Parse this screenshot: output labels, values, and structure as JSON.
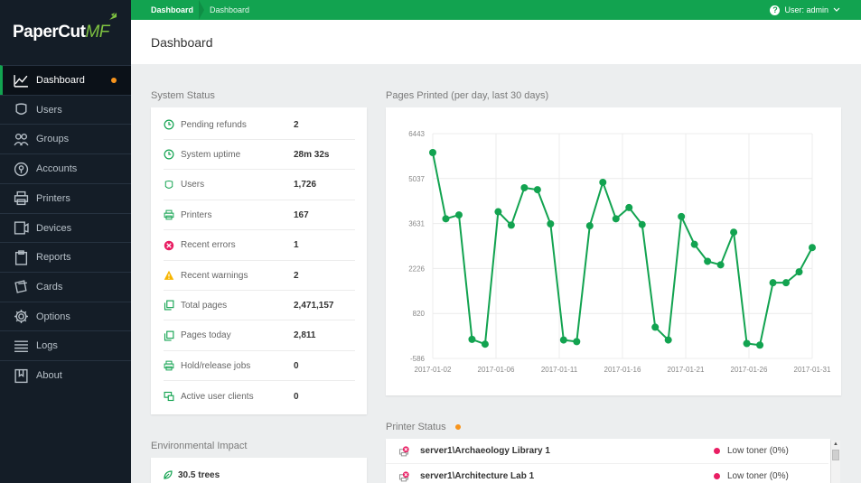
{
  "app": {
    "logo_main": "PaperCut",
    "logo_suffix": "MF"
  },
  "breadcrumb": [
    "Dashboard",
    "Dashboard"
  ],
  "user_menu": "User: admin",
  "page_title": "Dashboard",
  "sidebar": {
    "items": [
      {
        "label": "Dashboard",
        "icon": "chart-line-icon",
        "active": true
      },
      {
        "label": "Users",
        "icon": "user-icon"
      },
      {
        "label": "Groups",
        "icon": "groups-icon"
      },
      {
        "label": "Accounts",
        "icon": "accounts-icon"
      },
      {
        "label": "Printers",
        "icon": "printer-icon"
      },
      {
        "label": "Devices",
        "icon": "device-icon"
      },
      {
        "label": "Reports",
        "icon": "clipboard-icon"
      },
      {
        "label": "Cards",
        "icon": "cards-icon"
      },
      {
        "label": "Options",
        "icon": "gear-icon"
      },
      {
        "label": "Logs",
        "icon": "list-icon"
      },
      {
        "label": "About",
        "icon": "book-icon"
      }
    ]
  },
  "system_status": {
    "title": "System Status",
    "rows": [
      {
        "label": "Pending refunds",
        "value": "2",
        "icon": "clock-icon"
      },
      {
        "label": "System uptime",
        "value": "28m 32s",
        "icon": "clock-icon"
      },
      {
        "label": "Users",
        "value": "1,726",
        "icon": "user-icon"
      },
      {
        "label": "Printers",
        "value": "167",
        "icon": "printer-icon"
      },
      {
        "label": "Recent errors",
        "value": "1",
        "icon": "error-icon"
      },
      {
        "label": "Recent warnings",
        "value": "2",
        "icon": "warning-icon"
      },
      {
        "label": "Total pages",
        "value": "2,471,157",
        "icon": "pages-icon"
      },
      {
        "label": "Pages today",
        "value": "2,811",
        "icon": "pages-icon"
      },
      {
        "label": "Hold/release jobs",
        "value": "0",
        "icon": "printer-icon"
      },
      {
        "label": "Active user clients",
        "value": "0",
        "icon": "monitor-icon"
      }
    ]
  },
  "environmental_impact": {
    "title": "Environmental Impact",
    "trees": "30.5 trees"
  },
  "printer_status": {
    "title": "Printer Status",
    "rows": [
      {
        "name": "server1\\Archaeology Library 1",
        "status": "Low toner (0%)"
      },
      {
        "name": "server1\\Architecture Lab 1",
        "status": "Low toner (0%)"
      }
    ]
  },
  "colors": {
    "accent": "#12a350",
    "sidebar_bg": "#141d27",
    "warning_dot": "#f7941d",
    "error": "#e91e63"
  },
  "chart_data": {
    "type": "line",
    "title": "Pages Printed (per day, last 30 days)",
    "yticks": [
      "6443",
      "5037",
      "3631",
      "2226",
      "820",
      "-586"
    ],
    "ylim": [
      -586,
      6443
    ],
    "xticks": [
      "2017-01-02",
      "2017-01-06",
      "2017-01-11",
      "2017-01-16",
      "2017-01-21",
      "2017-01-26",
      "2017-01-31"
    ],
    "grid": true,
    "series": [
      {
        "color": "#12a350",
        "values": [
          5850,
          3780,
          3900,
          10,
          -140,
          4000,
          3580,
          4750,
          4690,
          3620,
          -10,
          -60,
          3560,
          4920,
          3780,
          4130,
          3600,
          390,
          -10,
          3850,
          2980,
          2450,
          2340,
          3360,
          -120,
          -170,
          1780,
          1780,
          2120,
          2880
        ]
      }
    ]
  }
}
